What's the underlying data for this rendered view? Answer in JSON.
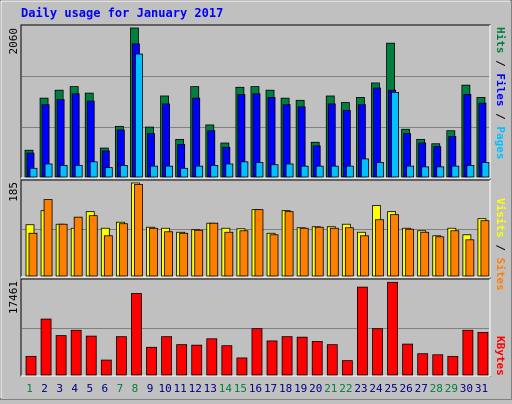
{
  "chart_data": [
    {
      "type": "bar",
      "title": "Daily usage for January 2017",
      "categories": [
        "1",
        "2",
        "3",
        "4",
        "5",
        "6",
        "7",
        "8",
        "9",
        "10",
        "11",
        "12",
        "13",
        "14",
        "15",
        "16",
        "17",
        "18",
        "19",
        "20",
        "21",
        "22",
        "23",
        "24",
        "25",
        "26",
        "27",
        "28",
        "29",
        "30",
        "31"
      ],
      "weekend_days": [
        "1",
        "7",
        "8",
        "14",
        "15",
        "21",
        "22",
        "28",
        "29"
      ],
      "ymax_label": "2060",
      "ylim": [
        0,
        2060
      ],
      "right_label": [
        "Pages",
        "Files",
        "Hits"
      ],
      "series": [
        {
          "name": "Hits",
          "color": "#008040",
          "values": [
            370,
            1090,
            1200,
            1250,
            1160,
            400,
            700,
            2060,
            690,
            1120,
            520,
            1250,
            720,
            470,
            1240,
            1250,
            1200,
            1090,
            1060,
            480,
            1120,
            1030,
            1100,
            1300,
            1850,
            660,
            520,
            460,
            640,
            1270,
            1100
          ]
        },
        {
          "name": "Files",
          "color": "#0000ff",
          "values": [
            330,
            1000,
            1070,
            1150,
            1050,
            360,
            650,
            1840,
            600,
            1010,
            450,
            1090,
            640,
            410,
            1140,
            1150,
            1100,
            1000,
            970,
            430,
            1010,
            920,
            1000,
            1230,
            1200,
            600,
            470,
            420,
            560,
            1140,
            1020
          ]
        },
        {
          "name": "Pages",
          "color": "#00c0ff",
          "values": [
            120,
            180,
            160,
            160,
            210,
            130,
            160,
            1700,
            150,
            150,
            120,
            150,
            160,
            180,
            210,
            200,
            170,
            180,
            150,
            150,
            150,
            150,
            250,
            200,
            1170,
            150,
            140,
            140,
            150,
            160,
            200
          ]
        }
      ]
    },
    {
      "type": "bar",
      "ymax_label": "185",
      "ylim": [
        0,
        185
      ],
      "right_label": [
        "Sites",
        "Visits"
      ],
      "series": [
        {
          "name": "Visits",
          "color": "#ffff00",
          "values": [
            102,
            130,
            103,
            95,
            128,
            95,
            107,
            185,
            97,
            95,
            87,
            92,
            105,
            95,
            94,
            132,
            85,
            130,
            96,
            98,
            98,
            103,
            87,
            140,
            128,
            95,
            90,
            80,
            95,
            82,
            114
          ]
        },
        {
          "name": "Sites",
          "color": "#ff8000",
          "values": [
            85,
            152,
            103,
            117,
            120,
            80,
            104,
            182,
            95,
            88,
            85,
            91,
            105,
            87,
            90,
            132,
            82,
            128,
            95,
            97,
            95,
            96,
            80,
            112,
            122,
            93,
            87,
            78,
            90,
            72,
            110
          ]
        }
      ]
    },
    {
      "type": "bar",
      "ymax_label": "17461",
      "ylim": [
        0,
        17461
      ],
      "right_label": [
        "KBytes"
      ],
      "series": [
        {
          "name": "KBytes",
          "color": "#ff0000",
          "values": [
            3500,
            10500,
            7400,
            8400,
            7300,
            2800,
            7200,
            15300,
            5200,
            7200,
            5700,
            5600,
            6800,
            5500,
            3200,
            8700,
            6400,
            7200,
            7100,
            6300,
            5700,
            2700,
            16500,
            8700,
            17400,
            5800,
            4000,
            3800,
            3500,
            8400,
            8000
          ]
        }
      ]
    }
  ],
  "colors": {
    "background": "#c0c0c0",
    "plot_bg": "#c0c0c0",
    "title": "#0000ff",
    "weekend_day": "#008040",
    "weekday": "#000080"
  }
}
